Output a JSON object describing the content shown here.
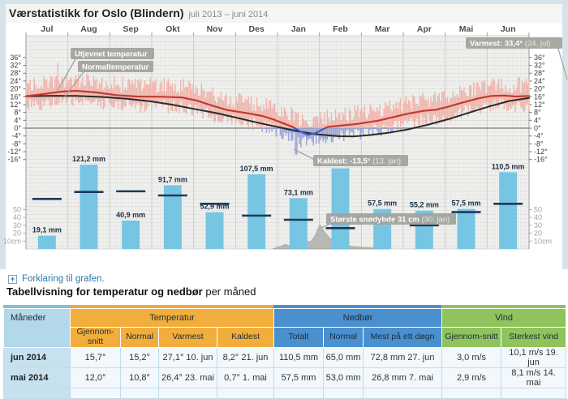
{
  "page": {
    "header": {
      "title": "Værstatistikk for Oslo (Blindern)",
      "period": "juli 2013 – juni 2014"
    },
    "explain_link": "Forklaring til grafen.",
    "icons": {
      "expand": "+"
    },
    "table_title": {
      "bold": "Tabellvisning for temperatur og nedbør",
      "normal": " per måned"
    }
  },
  "chart_data": [
    {
      "type": "line",
      "title": "Temperatur",
      "unit": "°C",
      "months": [
        "Jul",
        "Aug",
        "Sep",
        "Okt",
        "Nov",
        "Des",
        "Jan",
        "Feb",
        "Mar",
        "Apr",
        "Mai",
        "Jun"
      ],
      "yticks_deg": [
        36,
        32,
        28,
        24,
        20,
        16,
        12,
        8,
        4,
        0,
        -4,
        -8,
        -12,
        -16
      ],
      "series": [
        {
          "name": "Utjevnet temperatur",
          "color": "#c23a30",
          "color_below_zero": "#4159c4",
          "points": [
            [
              0,
              16.3
            ],
            [
              0.03,
              17.2
            ],
            [
              0.07,
              18.6
            ],
            [
              0.1,
              19.0
            ],
            [
              0.14,
              18.2
            ],
            [
              0.18,
              16.8
            ],
            [
              0.22,
              16.1
            ],
            [
              0.27,
              16.0
            ],
            [
              0.31,
              15.6
            ],
            [
              0.34,
              14.0
            ],
            [
              0.37,
              11.5
            ],
            [
              0.4,
              9.2
            ],
            [
              0.44,
              7.6
            ],
            [
              0.47,
              6.2
            ],
            [
              0.49,
              4.6
            ],
            [
              0.51,
              2.6
            ],
            [
              0.53,
              0.6
            ],
            [
              0.545,
              -1.6
            ],
            [
              0.56,
              -3.4
            ],
            [
              0.575,
              -2.6
            ],
            [
              0.59,
              -0.6
            ],
            [
              0.6,
              0.6
            ],
            [
              0.63,
              1.4
            ],
            [
              0.66,
              2.2
            ],
            [
              0.7,
              3.8
            ],
            [
              0.73,
              5.6
            ],
            [
              0.76,
              7.4
            ],
            [
              0.79,
              8.8
            ],
            [
              0.815,
              9.4
            ],
            [
              0.84,
              11.0
            ],
            [
              0.87,
              13.2
            ],
            [
              0.9,
              15.2
            ],
            [
              0.925,
              16.4
            ],
            [
              0.95,
              16.6
            ],
            [
              0.975,
              16.1
            ],
            [
              1,
              16.4
            ]
          ]
        },
        {
          "name": "Normaltemperatur",
          "color": "#2a2a2a",
          "color_below_zero": "#2a2a2a",
          "points": [
            [
              0,
              16.2
            ],
            [
              0.05,
              16.5
            ],
            [
              0.1,
              16.4
            ],
            [
              0.15,
              15.9
            ],
            [
              0.2,
              15.0
            ],
            [
              0.25,
              13.6
            ],
            [
              0.29,
              12.0
            ],
            [
              0.33,
              10.0
            ],
            [
              0.38,
              7.6
            ],
            [
              0.42,
              5.2
            ],
            [
              0.46,
              2.8
            ],
            [
              0.5,
              0.6
            ],
            [
              0.54,
              -1.6
            ],
            [
              0.58,
              -3.2
            ],
            [
              0.62,
              -4.1
            ],
            [
              0.65,
              -4.2
            ],
            [
              0.68,
              -3.6
            ],
            [
              0.72,
              -2.4
            ],
            [
              0.76,
              -0.6
            ],
            [
              0.8,
              1.8
            ],
            [
              0.84,
              4.6
            ],
            [
              0.88,
              7.8
            ],
            [
              0.92,
              11.0
            ],
            [
              0.96,
              13.8
            ],
            [
              1,
              15.4
            ]
          ]
        }
      ],
      "band_colors": {
        "above_zero": "#efb4ab",
        "below_zero": "#9ba3d6"
      },
      "annotations": {
        "smoothed_label": "Utjevnet temperatur",
        "normal_label": "Normaltemperatur",
        "warmest": {
          "label": "Varmest: 33,4°",
          "detail": "(24. jul)",
          "value": 33.4,
          "day_frac": 0.063
        },
        "coldest": {
          "label": "Kaldest: -13,5°",
          "detail": "(13. jan)",
          "value": -13.5,
          "day_frac": 0.537
        }
      }
    },
    {
      "type": "bar",
      "title": "Nedbør",
      "unit": "mm",
      "categories": [
        "Jul",
        "Aug",
        "Sep",
        "Okt",
        "Nov",
        "Des",
        "Jan",
        "Feb",
        "Mar",
        "Apr",
        "Mai",
        "Jun"
      ],
      "values": [
        19.1,
        121.2,
        40.9,
        91.7,
        52.9,
        107.5,
        73.1,
        116.0,
        57.5,
        55.2,
        57.5,
        110.5
      ],
      "bar_labels": [
        "19,1 mm",
        "121,2 mm",
        "40,9 mm",
        "91,7 mm",
        "52,9 mm",
        "107,5 mm",
        "73,1 mm",
        "",
        "57,5 mm",
        "55,2 mm",
        "57,5 mm",
        "110,5 mm"
      ],
      "normal_values": [
        72,
        82,
        83,
        77,
        65,
        48,
        42,
        30,
        40,
        34,
        53,
        65
      ],
      "bar_color": "#76c5e3",
      "normal_line_color": "#1b3a5e"
    },
    {
      "type": "area",
      "title": "Snødybde",
      "unit": "cm",
      "yticks_cm": [
        50,
        40,
        30,
        20,
        10
      ],
      "cm_suffix_label": "10cm",
      "annotation": {
        "label": "Største snødybde 31 cm",
        "detail": "(30. jan)",
        "value": 31
      },
      "fill_color": "#b6b6b1",
      "points": [
        [
          0.49,
          0
        ],
        [
          0.505,
          3
        ],
        [
          0.515,
          6
        ],
        [
          0.525,
          4
        ],
        [
          0.535,
          8
        ],
        [
          0.545,
          6
        ],
        [
          0.555,
          11
        ],
        [
          0.565,
          9
        ],
        [
          0.572,
          14
        ],
        [
          0.578,
          22
        ],
        [
          0.584,
          31
        ],
        [
          0.59,
          25
        ],
        [
          0.597,
          19
        ],
        [
          0.605,
          13
        ],
        [
          0.615,
          9
        ],
        [
          0.63,
          6
        ],
        [
          0.65,
          3
        ],
        [
          0.67,
          2
        ],
        [
          0.7,
          1
        ],
        [
          0.72,
          0
        ]
      ]
    }
  ],
  "table": {
    "groups": [
      {
        "label": "Måneder",
        "color": "#b3d8ea"
      },
      {
        "label": "Temperatur",
        "color": "#f2ae3c"
      },
      {
        "label": "Nedbør",
        "color": "#4a90ce"
      },
      {
        "label": "Vind",
        "color": "#8ec35d"
      }
    ],
    "columns": [
      "Gjennom-snitt",
      "Normal",
      "Varmest",
      "Kaldest",
      "Totalt",
      "Normal",
      "Mest på ett døgn",
      "Gjennom-snitt",
      "Sterkest vind"
    ],
    "rows": [
      {
        "month": "jun 2014",
        "cells": [
          "15,7°",
          "15,2°",
          "27,1° 10. jun",
          "8,2° 21. jun",
          "110,5 mm",
          "65,0 mm",
          "72,8 mm 27. jun",
          "3,0 m/s",
          "10,1 m/s 19. jun"
        ]
      },
      {
        "month": "mai 2014",
        "cells": [
          "12,0°",
          "10,8°",
          "26,4° 23. mai",
          "0,7° 1. mai",
          "57,5 mm",
          "53,0 mm",
          "26,8 mm 7. mai",
          "2,9 m/s",
          "8,1 m/s 14. mai"
        ]
      }
    ]
  }
}
